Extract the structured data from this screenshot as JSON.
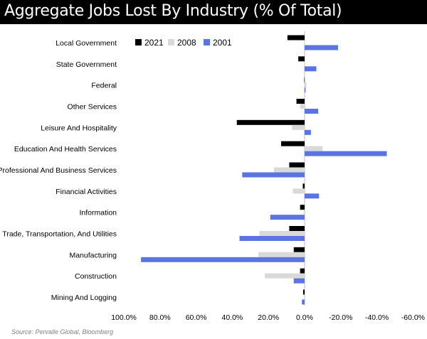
{
  "chart_data": {
    "type": "bar",
    "orientation": "horizontal",
    "title": "Aggregate Jobs Lost By Industry (% Of Total)",
    "source": "Source: Pervalle Global, Bloomberg",
    "categories": [
      "Local Government",
      "State Government",
      "Federal",
      "Other Services",
      "Leisure And Hospitality",
      "Education And Health Services",
      "Professional And Business Services",
      "Financial Activities",
      "Information",
      "Trade, Transportation, And Utilities",
      "Manufacturing",
      "Construction",
      "Mining And Logging"
    ],
    "series": [
      {
        "name": "2021",
        "color": "#000000",
        "values": [
          9.5,
          3.5,
          0.2,
          4.5,
          37.5,
          13.0,
          8.5,
          1.0,
          2.5,
          8.5,
          6.0,
          2.5,
          0.8
        ]
      },
      {
        "name": "2008",
        "color": "#d9d9d9",
        "values": [
          0.0,
          0.0,
          -1.0,
          2.5,
          7.0,
          -10.0,
          17.0,
          6.5,
          0.5,
          25.0,
          25.5,
          22.0,
          0.3
        ]
      },
      {
        "name": "2001",
        "color": "#5b74e3",
        "values": [
          -18.5,
          -6.5,
          -0.5,
          -7.5,
          -3.5,
          -45.5,
          34.5,
          -8.0,
          19.0,
          36.0,
          90.5,
          6.0,
          1.5
        ]
      }
    ],
    "xlim": [
      100,
      -60
    ],
    "xticks": [
      100,
      80,
      60,
      40,
      20,
      0,
      -20,
      -40,
      -60
    ],
    "xtick_labels": [
      "100.0%",
      "80.0%",
      "60.0%",
      "40.0%",
      "20.0%",
      "0.0%",
      "-20.0%",
      "-40.0%",
      "-60.0%"
    ],
    "x_reversed": true,
    "grid": false,
    "legend": "top-left",
    "xlabel": "",
    "ylabel": ""
  }
}
